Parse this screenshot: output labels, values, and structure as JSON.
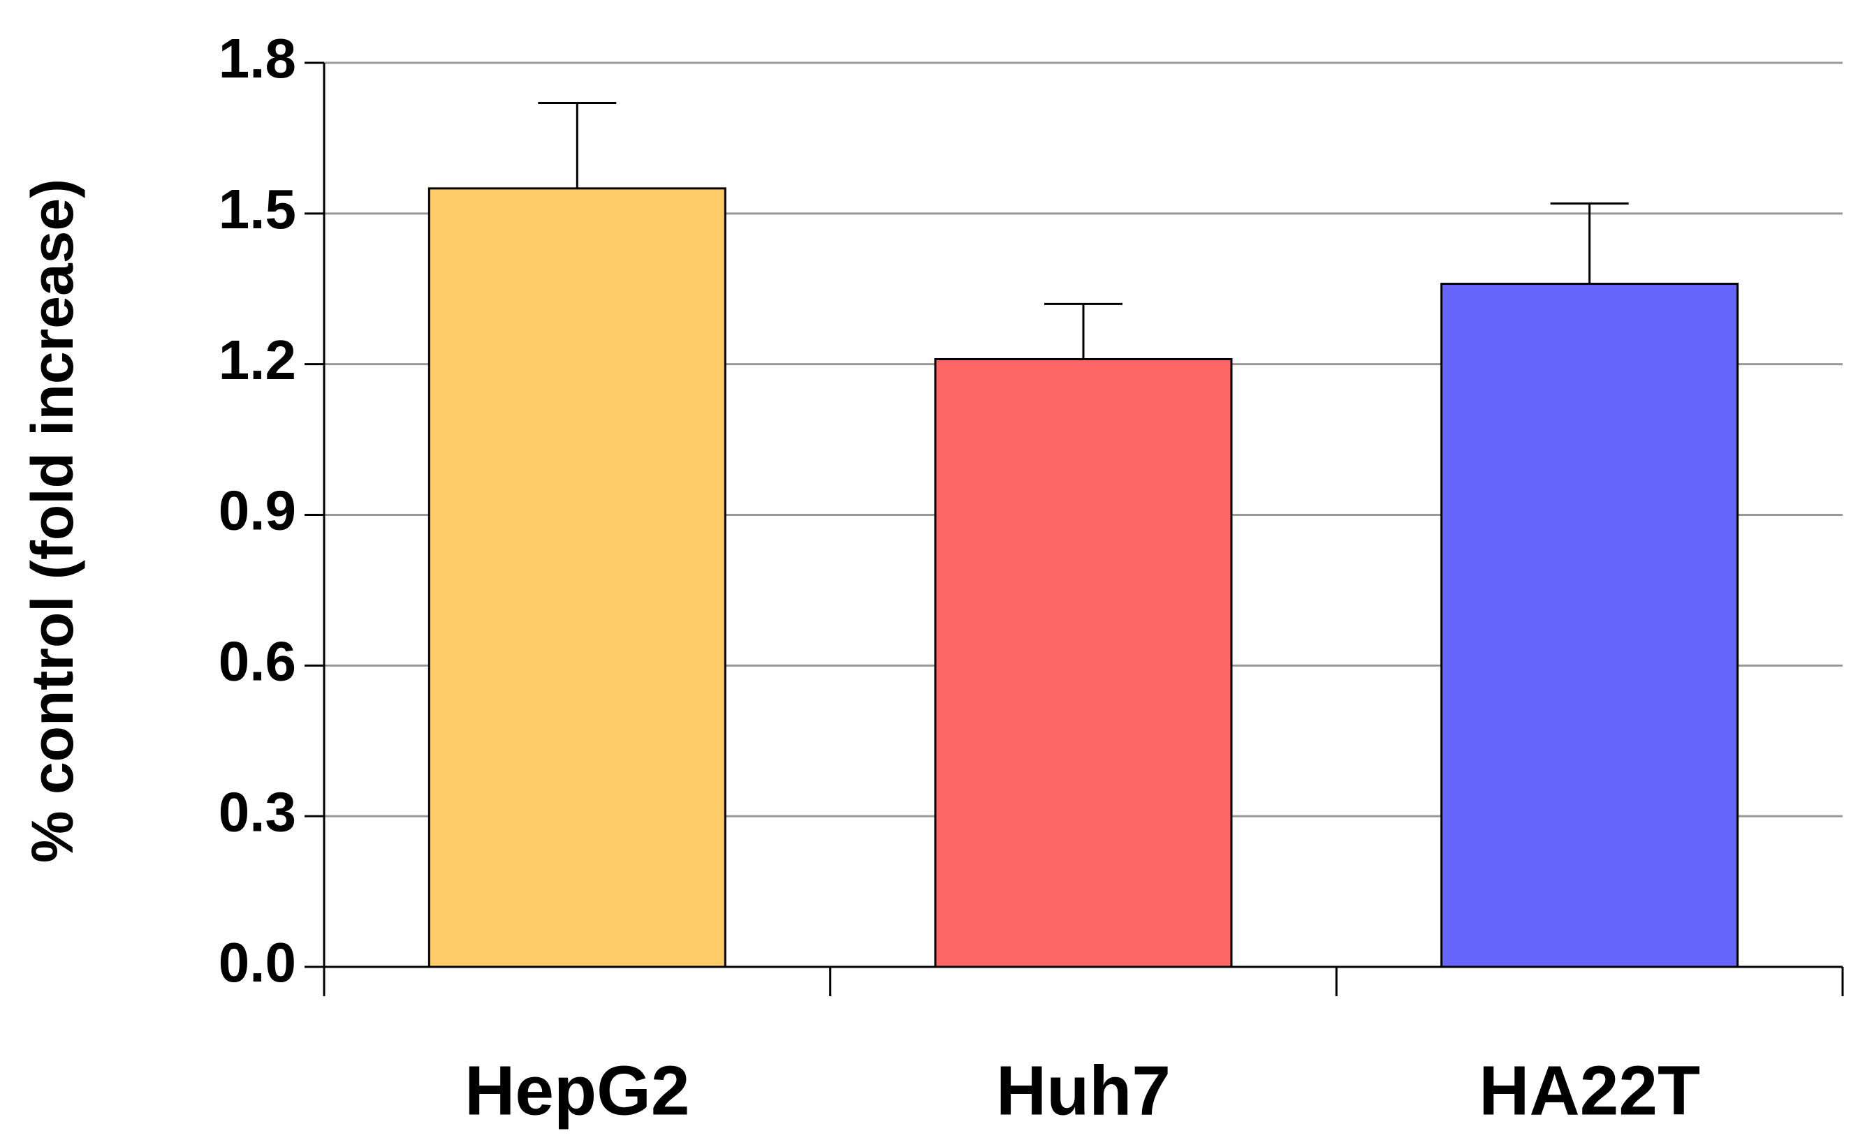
{
  "chart_data": {
    "type": "bar",
    "y_label": "% control (fold increase)",
    "categories": [
      "HepG2",
      "Huh7",
      "HA22T"
    ],
    "values": [
      1.55,
      1.21,
      1.36
    ],
    "errors": [
      0.17,
      0.11,
      0.16
    ],
    "colors": [
      "#FDCB67",
      "#FF6666",
      "#6666FF"
    ],
    "ylim": [
      0,
      1.8
    ],
    "yticks": [
      {
        "value": 0,
        "label": "0.0"
      },
      0.3,
      0.6,
      0.9,
      1.2,
      1.5,
      1.8
    ],
    "grid": true
  }
}
